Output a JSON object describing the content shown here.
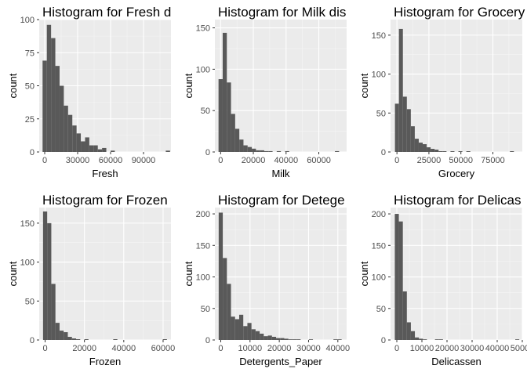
{
  "colors": {
    "panel_background": "#ebebeb",
    "grid_major": "#ffffff",
    "grid_minor": "#f5f5f5",
    "bar_fill": "#595959",
    "tick_text": "#4d4d4d",
    "axis_tick": "#333333"
  },
  "chart_data": [
    {
      "type": "bar",
      "title": "Histogram for Fresh d",
      "xlabel": "Fresh",
      "ylabel": "count",
      "xlim": [
        -5000,
        115000
      ],
      "ylim": [
        0,
        100
      ],
      "xticks": [
        0,
        30000,
        60000,
        90000
      ],
      "xtick_labels": [
        "0",
        "30000",
        "60000",
        "90000"
      ],
      "yticks": [
        0,
        25,
        50,
        75,
        100
      ],
      "bin_width": 3870,
      "bin_start": -1935,
      "counts": [
        69,
        96,
        86,
        65,
        50,
        35,
        28,
        20,
        14,
        8,
        11,
        5,
        5,
        2,
        3,
        0,
        1,
        0,
        0,
        0,
        0,
        0,
        0,
        0,
        0,
        0,
        0,
        0,
        0,
        1
      ]
    },
    {
      "type": "bar",
      "title": "Histogram for Milk dis",
      "xlabel": "Milk",
      "ylabel": "count",
      "xlim": [
        -3500,
        77000
      ],
      "ylim": [
        0,
        160
      ],
      "xticks": [
        0,
        20000,
        40000,
        60000
      ],
      "xtick_labels": [
        "0",
        "20000",
        "40000",
        "60000"
      ],
      "yticks": [
        0,
        50,
        100,
        150
      ],
      "bin_width": 2540,
      "bin_start": -1270,
      "counts": [
        88,
        144,
        84,
        46,
        28,
        15,
        8,
        6,
        4,
        2,
        2,
        1,
        1,
        0,
        1,
        0,
        1,
        0,
        0,
        0,
        0,
        0,
        0,
        0,
        0,
        0,
        0,
        0,
        1
      ]
    },
    {
      "type": "bar",
      "title": "Histogram for Grocery",
      "xlabel": "Grocery",
      "ylabel": "count",
      "xlim": [
        -5000,
        98000
      ],
      "ylim": [
        0,
        170
      ],
      "xticks": [
        0,
        25000,
        50000,
        75000
      ],
      "xtick_labels": [
        "0",
        "25000",
        "50000",
        "75000"
      ],
      "yticks": [
        0,
        50,
        100,
        150
      ],
      "bin_width": 3100,
      "bin_start": -1550,
      "counts": [
        62,
        158,
        71,
        55,
        33,
        17,
        12,
        10,
        6,
        4,
        3,
        1,
        1,
        0,
        1,
        0,
        1,
        0,
        1,
        0,
        0,
        0,
        0,
        0,
        0,
        0,
        0,
        0,
        0,
        1
      ]
    },
    {
      "type": "bar",
      "title": "Histogram for Frozen",
      "xlabel": "Frozen",
      "ylabel": "count",
      "xlim": [
        -3000,
        64000
      ],
      "ylim": [
        0,
        170
      ],
      "xticks": [
        0,
        20000,
        40000,
        60000
      ],
      "xtick_labels": [
        "0",
        "20000",
        "40000",
        "60000"
      ],
      "yticks": [
        0,
        50,
        100,
        150
      ],
      "bin_width": 2100,
      "bin_start": -1050,
      "counts": [
        165,
        150,
        72,
        22,
        12,
        10,
        4,
        2,
        1,
        0,
        1,
        0,
        0,
        0,
        0,
        0,
        0,
        1,
        0,
        0,
        0,
        0,
        0,
        0,
        0,
        0,
        0,
        0,
        0,
        1
      ]
    },
    {
      "type": "bar",
      "title": "Histogram for Detege",
      "xlabel": "Detergents_Paper",
      "ylabel": "count",
      "xlim": [
        -2000,
        43000
      ],
      "ylim": [
        0,
        210
      ],
      "xticks": [
        0,
        10000,
        20000,
        30000,
        40000
      ],
      "xtick_labels": [
        "0",
        "10000",
        "20000",
        "30000",
        "40000"
      ],
      "yticks": [
        0,
        50,
        100,
        150,
        200
      ],
      "bin_width": 1400,
      "bin_start": -700,
      "counts": [
        202,
        130,
        89,
        37,
        33,
        40,
        22,
        27,
        17,
        14,
        10,
        6,
        7,
        5,
        3,
        3,
        2,
        1,
        1,
        1,
        0,
        0,
        1,
        0,
        0,
        0,
        0,
        0,
        1,
        1
      ]
    },
    {
      "type": "bar",
      "title": "Histogram for Delicas",
      "xlabel": "Delicassen",
      "ylabel": "count",
      "xlim": [
        -2500,
        50000
      ],
      "ylim": [
        0,
        210
      ],
      "xticks": [
        0,
        10000,
        20000,
        30000,
        40000,
        50000
      ],
      "xtick_labels": [
        "0",
        "10000",
        "20000",
        "30000",
        "40000",
        "50000"
      ],
      "yticks": [
        0,
        50,
        100,
        150,
        200
      ],
      "bin_width": 1600,
      "bin_start": -800,
      "counts": [
        200,
        188,
        77,
        28,
        14,
        4,
        2,
        1,
        0,
        0,
        1,
        1,
        0,
        0,
        0,
        0,
        0,
        0,
        0,
        0,
        0,
        0,
        0,
        0,
        0,
        0,
        0,
        0,
        0,
        0,
        1
      ]
    }
  ]
}
